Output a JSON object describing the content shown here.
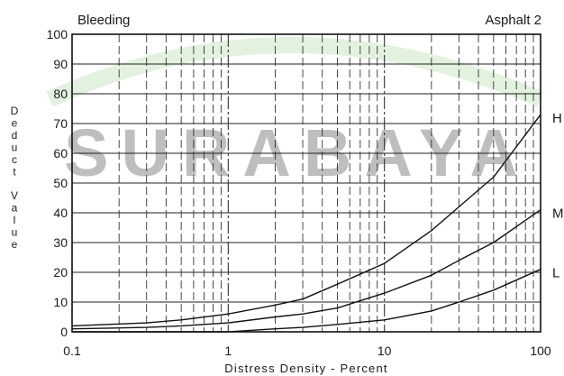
{
  "chart_data": {
    "type": "line",
    "title": "Bleeding",
    "subtitle": "Asphalt 2",
    "xlabel": "Distress Density - Percent",
    "ylabel": "Deduct Value",
    "x_scale": "log",
    "xlim": [
      0.1,
      100
    ],
    "ylim": [
      0,
      100
    ],
    "x_ticks": [
      "0.1",
      "1",
      "10",
      "100"
    ],
    "y_ticks": [
      "0",
      "10",
      "20",
      "30",
      "40",
      "50",
      "60",
      "70",
      "80",
      "90",
      "100"
    ],
    "grid": true,
    "series": [
      {
        "name": "H",
        "x": [
          0.1,
          0.3,
          0.5,
          1,
          2,
          3,
          5,
          10,
          20,
          30,
          50,
          100
        ],
        "y": [
          2,
          3,
          4,
          6,
          9,
          11,
          16,
          23,
          34,
          42,
          52,
          73
        ]
      },
      {
        "name": "M",
        "x": [
          0.1,
          0.3,
          0.5,
          1,
          2,
          3,
          5,
          10,
          20,
          30,
          50,
          100
        ],
        "y": [
          1,
          1.5,
          2,
          3,
          5,
          6,
          8,
          13,
          19,
          24,
          30,
          41
        ]
      },
      {
        "name": "L",
        "x": [
          0.1,
          0.3,
          0.5,
          1,
          2,
          3,
          5,
          10,
          20,
          30,
          50,
          100
        ],
        "y": [
          0,
          0,
          0,
          0,
          1,
          1.5,
          2.5,
          4,
          7,
          10,
          14,
          21
        ]
      }
    ]
  },
  "watermark": {
    "text": "SURABAYA",
    "color": "#7cc36a"
  }
}
